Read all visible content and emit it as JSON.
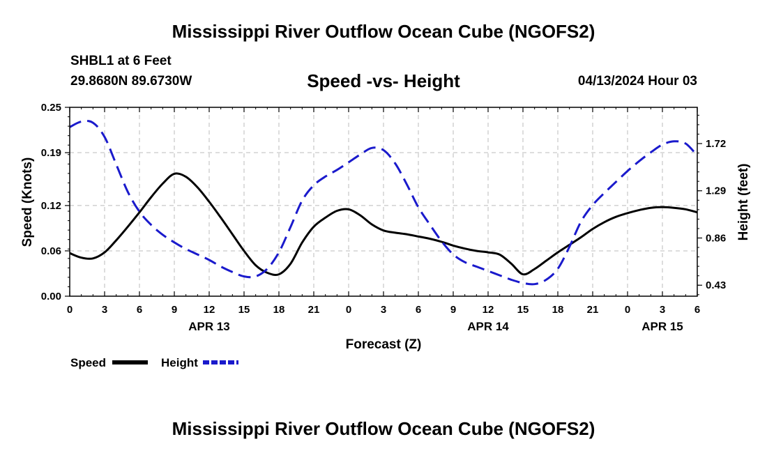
{
  "titles": {
    "main": "Mississippi River Outflow Ocean Cube (NGOFS2)",
    "footer": "Mississippi River Outflow Ocean Cube (NGOFS2)"
  },
  "station": {
    "name": "SHBL1 at 6 Feet",
    "coords": "29.8680N  89.6730W",
    "datetime": "04/13/2024 Hour 03"
  },
  "chart_data": {
    "type": "line",
    "title": "Speed -vs- Height",
    "xlabel": "Forecast (Z)",
    "ylabel_left": "Speed (Knots)",
    "ylabel_right": "Height (feet)",
    "x_range_hours": [
      0,
      54
    ],
    "x_ticks": [
      {
        "h": 0,
        "label": "0"
      },
      {
        "h": 3,
        "label": "3"
      },
      {
        "h": 6,
        "label": "6"
      },
      {
        "h": 9,
        "label": "9"
      },
      {
        "h": 12,
        "label": "12"
      },
      {
        "h": 15,
        "label": "15"
      },
      {
        "h": 18,
        "label": "18"
      },
      {
        "h": 21,
        "label": "21"
      },
      {
        "h": 24,
        "label": "0"
      },
      {
        "h": 27,
        "label": "3"
      },
      {
        "h": 30,
        "label": "6"
      },
      {
        "h": 33,
        "label": "9"
      },
      {
        "h": 36,
        "label": "12"
      },
      {
        "h": 39,
        "label": "15"
      },
      {
        "h": 42,
        "label": "18"
      },
      {
        "h": 45,
        "label": "21"
      },
      {
        "h": 48,
        "label": "0"
      },
      {
        "h": 51,
        "label": "3"
      },
      {
        "h": 54,
        "label": "6"
      }
    ],
    "date_labels": [
      {
        "h": 12,
        "label": "APR 13"
      },
      {
        "h": 36,
        "label": "APR 14"
      },
      {
        "h": 51,
        "label": "APR 15"
      }
    ],
    "y_left": {
      "range": [
        0,
        0.25
      ],
      "ticks": [
        0,
        0.06,
        0.12,
        0.19,
        0.25
      ],
      "tick_labels": [
        "0.00",
        "0.06",
        "0.12",
        "0.19",
        "0.25"
      ]
    },
    "y_right": {
      "range": [
        0.33,
        2.05
      ],
      "ticks": [
        0.43,
        0.86,
        1.29,
        1.72
      ],
      "tick_labels": [
        "0.43",
        "0.86",
        "1.29",
        "1.72"
      ]
    },
    "series": [
      {
        "name": "Speed",
        "axis": "left",
        "color": "#000000",
        "dash": "solid",
        "x": [
          0,
          1,
          2,
          3,
          4,
          5,
          6,
          7,
          8,
          9,
          10,
          11,
          12,
          13,
          14,
          15,
          16,
          17,
          18,
          19,
          20,
          21,
          22,
          23,
          24,
          25,
          26,
          27,
          28,
          29,
          30,
          31,
          32,
          33,
          34,
          35,
          36,
          37,
          38,
          39,
          40,
          41,
          42,
          43,
          44,
          45,
          46,
          47,
          48,
          49,
          50,
          51,
          52,
          53,
          54
        ],
        "y": [
          0.057,
          0.051,
          0.05,
          0.058,
          0.074,
          0.092,
          0.111,
          0.131,
          0.149,
          0.162,
          0.158,
          0.144,
          0.125,
          0.104,
          0.082,
          0.06,
          0.041,
          0.031,
          0.029,
          0.043,
          0.071,
          0.092,
          0.104,
          0.113,
          0.115,
          0.107,
          0.095,
          0.087,
          0.084,
          0.082,
          0.079,
          0.076,
          0.072,
          0.067,
          0.063,
          0.06,
          0.058,
          0.055,
          0.043,
          0.029,
          0.036,
          0.047,
          0.058,
          0.068,
          0.078,
          0.089,
          0.098,
          0.105,
          0.11,
          0.114,
          0.117,
          0.118,
          0.117,
          0.115,
          0.111
        ]
      },
      {
        "name": "Height",
        "axis": "right",
        "color": "#1a1acc",
        "dash": "dashed",
        "x": [
          0,
          1,
          2,
          3,
          4,
          5,
          6,
          7,
          8,
          9,
          10,
          11,
          12,
          13,
          14,
          15,
          16,
          17,
          18,
          19,
          20,
          21,
          22,
          23,
          24,
          25,
          26,
          27,
          28,
          29,
          30,
          31,
          32,
          33,
          34,
          35,
          36,
          37,
          38,
          39,
          40,
          41,
          42,
          43,
          44,
          45,
          46,
          47,
          48,
          49,
          50,
          51,
          52,
          53,
          54
        ],
        "y": [
          1.87,
          1.92,
          1.91,
          1.78,
          1.53,
          1.28,
          1.1,
          0.98,
          0.89,
          0.82,
          0.76,
          0.71,
          0.66,
          0.6,
          0.55,
          0.51,
          0.51,
          0.58,
          0.73,
          0.96,
          1.2,
          1.34,
          1.42,
          1.48,
          1.55,
          1.62,
          1.68,
          1.66,
          1.54,
          1.35,
          1.14,
          0.98,
          0.83,
          0.71,
          0.64,
          0.6,
          0.56,
          0.52,
          0.48,
          0.45,
          0.44,
          0.48,
          0.58,
          0.78,
          1.01,
          1.16,
          1.27,
          1.37,
          1.47,
          1.56,
          1.64,
          1.71,
          1.74,
          1.72,
          1.61
        ]
      }
    ],
    "legend": {
      "placement": "bottom-left",
      "entries": [
        {
          "label": "Speed",
          "color": "#000000",
          "dash": "solid"
        },
        {
          "label": "Height",
          "color": "#1a1acc",
          "dash": "dashed"
        }
      ]
    },
    "grid": true
  }
}
